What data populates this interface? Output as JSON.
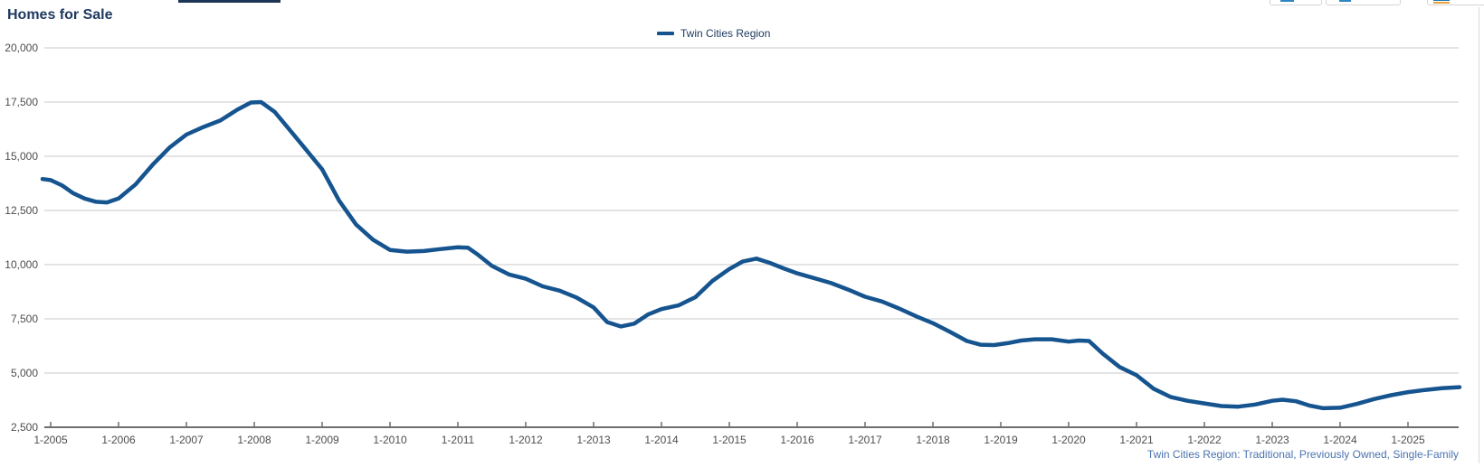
{
  "page": {
    "title": "Homes for Sale",
    "footer_note": "Twin Cities Region: Traditional, Previously Owned, Single-Family"
  },
  "legend": {
    "position": "top-center",
    "items": [
      {
        "label": "Twin Cities Region",
        "color": "#15548f"
      }
    ]
  },
  "toolbar": {
    "buttons": [
      {
        "name": "chart-option-button-1",
        "icon": "clipped-blue-glyph"
      },
      {
        "name": "chart-option-button-2",
        "icon": "clipped-blue-glyph"
      },
      {
        "name": "chart-option-button-3",
        "icon": "clipped-blue-glyph-active-orange-underline"
      }
    ]
  },
  "colors": {
    "line": "#15548f",
    "title_text": "#1f3a60",
    "grid": "#c9c9c9",
    "axis": "#6e6e6e",
    "tick_text": "#4d4d4d",
    "footer_text": "#4a73b0"
  },
  "chart_data": {
    "type": "line",
    "title": "Homes for Sale",
    "xlabel": "",
    "ylabel": "",
    "grid": "horizontal",
    "legend_position": "top",
    "ylim": [
      2500,
      20000
    ],
    "xlim": [
      2004.85,
      2025.78
    ],
    "y_ticks": [
      {
        "label": "2,500",
        "value": 2500
      },
      {
        "label": "5,000",
        "value": 5000
      },
      {
        "label": "7,500",
        "value": 7500
      },
      {
        "label": "10,000",
        "value": 10000
      },
      {
        "label": "12,500",
        "value": 12500
      },
      {
        "label": "15,000",
        "value": 15000
      },
      {
        "label": "17,500",
        "value": 17500
      },
      {
        "label": "20,000",
        "value": 20000
      }
    ],
    "x_ticks": [
      {
        "label": "1-2005",
        "year": 2005
      },
      {
        "label": "1-2006",
        "year": 2006
      },
      {
        "label": "1-2007",
        "year": 2007
      },
      {
        "label": "1-2008",
        "year": 2008
      },
      {
        "label": "1-2009",
        "year": 2009
      },
      {
        "label": "1-2010",
        "year": 2010
      },
      {
        "label": "1-2011",
        "year": 2011
      },
      {
        "label": "1-2012",
        "year": 2012
      },
      {
        "label": "1-2013",
        "year": 2013
      },
      {
        "label": "1-2014",
        "year": 2014
      },
      {
        "label": "1-2015",
        "year": 2015
      },
      {
        "label": "1-2016",
        "year": 2016
      },
      {
        "label": "1-2017",
        "year": 2017
      },
      {
        "label": "1-2018",
        "year": 2018
      },
      {
        "label": "1-2019",
        "year": 2019
      },
      {
        "label": "1-2020",
        "year": 2020
      },
      {
        "label": "1-2021",
        "year": 2021
      },
      {
        "label": "1-2022",
        "year": 2022
      },
      {
        "label": "1-2023",
        "year": 2023
      },
      {
        "label": "1-2024",
        "year": 2024
      },
      {
        "label": "1-2025",
        "year": 2025
      }
    ],
    "series": [
      {
        "name": "Twin Cities Region",
        "color": "#15548f",
        "points": [
          [
            2004.88,
            13950
          ],
          [
            2005.0,
            13900
          ],
          [
            2005.17,
            13650
          ],
          [
            2005.33,
            13300
          ],
          [
            2005.5,
            13050
          ],
          [
            2005.67,
            12900
          ],
          [
            2005.83,
            12870
          ],
          [
            2006.0,
            13050
          ],
          [
            2006.25,
            13700
          ],
          [
            2006.5,
            14600
          ],
          [
            2006.75,
            15400
          ],
          [
            2007.0,
            16000
          ],
          [
            2007.25,
            16350
          ],
          [
            2007.5,
            16650
          ],
          [
            2007.75,
            17150
          ],
          [
            2007.95,
            17480
          ],
          [
            2008.1,
            17500
          ],
          [
            2008.3,
            17050
          ],
          [
            2008.5,
            16300
          ],
          [
            2008.75,
            15350
          ],
          [
            2009.0,
            14400
          ],
          [
            2009.25,
            12950
          ],
          [
            2009.5,
            11850
          ],
          [
            2009.75,
            11150
          ],
          [
            2010.0,
            10680
          ],
          [
            2010.25,
            10600
          ],
          [
            2010.5,
            10630
          ],
          [
            2010.75,
            10720
          ],
          [
            2011.0,
            10800
          ],
          [
            2011.15,
            10780
          ],
          [
            2011.3,
            10450
          ],
          [
            2011.5,
            9950
          ],
          [
            2011.75,
            9550
          ],
          [
            2012.0,
            9350
          ],
          [
            2012.25,
            9000
          ],
          [
            2012.5,
            8800
          ],
          [
            2012.75,
            8480
          ],
          [
            2013.0,
            8030
          ],
          [
            2013.2,
            7350
          ],
          [
            2013.4,
            7150
          ],
          [
            2013.6,
            7280
          ],
          [
            2013.8,
            7700
          ],
          [
            2014.0,
            7950
          ],
          [
            2014.25,
            8120
          ],
          [
            2014.5,
            8500
          ],
          [
            2014.75,
            9250
          ],
          [
            2015.0,
            9800
          ],
          [
            2015.2,
            10150
          ],
          [
            2015.4,
            10280
          ],
          [
            2015.6,
            10080
          ],
          [
            2015.8,
            9830
          ],
          [
            2016.0,
            9600
          ],
          [
            2016.25,
            9380
          ],
          [
            2016.5,
            9150
          ],
          [
            2016.75,
            8850
          ],
          [
            2017.0,
            8520
          ],
          [
            2017.25,
            8300
          ],
          [
            2017.5,
            7980
          ],
          [
            2017.75,
            7620
          ],
          [
            2018.0,
            7300
          ],
          [
            2018.25,
            6900
          ],
          [
            2018.5,
            6480
          ],
          [
            2018.7,
            6310
          ],
          [
            2018.9,
            6290
          ],
          [
            2019.1,
            6380
          ],
          [
            2019.3,
            6500
          ],
          [
            2019.5,
            6560
          ],
          [
            2019.75,
            6560
          ],
          [
            2020.0,
            6450
          ],
          [
            2020.15,
            6500
          ],
          [
            2020.3,
            6480
          ],
          [
            2020.5,
            5900
          ],
          [
            2020.75,
            5280
          ],
          [
            2021.0,
            4900
          ],
          [
            2021.25,
            4280
          ],
          [
            2021.5,
            3900
          ],
          [
            2021.75,
            3720
          ],
          [
            2022.0,
            3600
          ],
          [
            2022.25,
            3480
          ],
          [
            2022.5,
            3450
          ],
          [
            2022.75,
            3550
          ],
          [
            2023.0,
            3720
          ],
          [
            2023.15,
            3770
          ],
          [
            2023.35,
            3700
          ],
          [
            2023.55,
            3500
          ],
          [
            2023.75,
            3380
          ],
          [
            2024.0,
            3400
          ],
          [
            2024.25,
            3580
          ],
          [
            2024.5,
            3800
          ],
          [
            2024.75,
            3980
          ],
          [
            2025.0,
            4120
          ],
          [
            2025.25,
            4220
          ],
          [
            2025.5,
            4300
          ],
          [
            2025.76,
            4350
          ]
        ]
      }
    ]
  }
}
